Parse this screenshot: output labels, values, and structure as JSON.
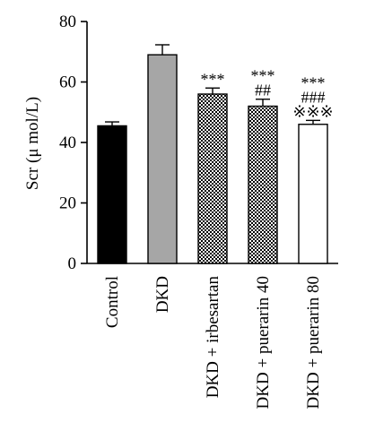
{
  "chart_data": {
    "type": "bar",
    "ylabel": "Scr (μ mol/L)",
    "ylim": [
      0,
      80
    ],
    "yticks": [
      0,
      20,
      40,
      60,
      80
    ],
    "categories": [
      "Control",
      "DKD",
      "DKD + irbesartan",
      "DKD + puerarin 40",
      "DKD + puerarin 80"
    ],
    "values": [
      45.5,
      69,
      56,
      52,
      46
    ],
    "errors": [
      1.3,
      3.3,
      2,
      2.3,
      1.3
    ],
    "fills": [
      "solid-black",
      "solid-gray",
      "checker",
      "checker",
      "white"
    ],
    "annotations": [
      [],
      [],
      [
        "***"
      ],
      [
        "***",
        "##"
      ],
      [
        "***",
        "###",
        "※※※"
      ]
    ]
  },
  "colors": {
    "bar_black": "#000000",
    "bar_gray": "#a6a6a6",
    "bar_white": "#ffffff",
    "stroke": "#000000"
  }
}
